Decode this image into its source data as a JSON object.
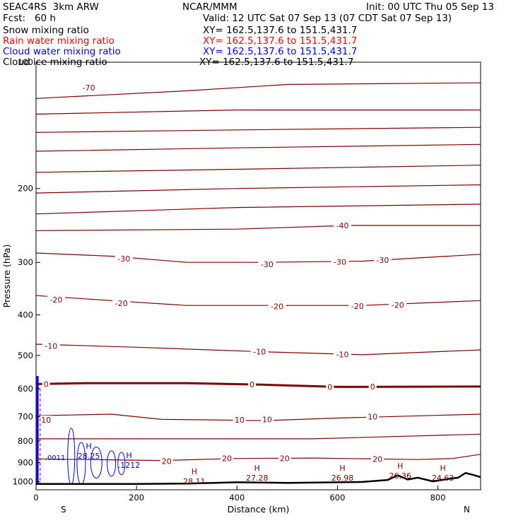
{
  "header": {
    "model": "SEAC4RS  3km ARW",
    "org": "NCAR/MMM",
    "init": "Init: 00 UTC Thu 05 Sep 13",
    "fcst": "Fcst:   60 h",
    "valid": "Valid: 12 UTC Sat 07 Sep 13 (07 CDT Sat 07 Sep 13)"
  },
  "fields": [
    {
      "label": "Snow mixing ratio",
      "xy": "XY= 162.5,137.6 to 151.5,431.7",
      "color": "#000000"
    },
    {
      "label": "Rain water mixing ratio",
      "xy": "XY= 162.5,137.6 to 151.5,431.7",
      "color": "#ff0000"
    },
    {
      "label": "Cloud water mixing ratio",
      "xy": "XY= 162.5,137.6 to 151.5,431.7",
      "color": "#0000ff"
    },
    {
      "label": "Cloud ice mixing ratio",
      "xy": "XY= 162.5,137.6 to 151.5,431.7",
      "color": "#000000"
    }
  ],
  "chart_data": {
    "type": "cross-section contour",
    "xlabel": "Distance (km)",
    "ylabel": "Pressure (hPa)",
    "xlim": [
      0,
      885
    ],
    "ylim": [
      1045,
      100
    ],
    "y_scale": "log",
    "xticks": [
      0,
      200,
      400,
      600,
      800
    ],
    "yticks": [
      100,
      200,
      300,
      400,
      500,
      600,
      700,
      800,
      900,
      1000
    ],
    "endpoints": [
      "S",
      "N"
    ],
    "isotherm_color": "#800000",
    "isotherms": [
      {
        "label": "-70",
        "p": [
          [
            0,
            122
          ],
          [
            300,
            117
          ],
          [
            500,
            113
          ],
          [
            885,
            112
          ]
        ],
        "labels": [
          [
            105,
            115
          ]
        ]
      },
      {
        "label": "",
        "p": [
          [
            0,
            133
          ],
          [
            400,
            130
          ],
          [
            885,
            130
          ]
        ]
      },
      {
        "label": "",
        "p": [
          [
            0,
            147
          ],
          [
            400,
            145
          ],
          [
            885,
            143
          ]
        ]
      },
      {
        "label": "",
        "p": [
          [
            0,
            163
          ],
          [
            400,
            160
          ],
          [
            885,
            157
          ]
        ]
      },
      {
        "label": "",
        "p": [
          [
            0,
            183
          ],
          [
            400,
            180
          ],
          [
            885,
            176
          ]
        ]
      },
      {
        "label": "",
        "p": [
          [
            0,
            205
          ],
          [
            400,
            200
          ],
          [
            885,
            196
          ]
        ]
      },
      {
        "label": "",
        "p": [
          [
            0,
            230
          ],
          [
            400,
            222
          ],
          [
            885,
            218
          ]
        ]
      },
      {
        "label": "-40",
        "p": [
          [
            0,
            252
          ],
          [
            400,
            250
          ],
          [
            620,
            245
          ],
          [
            885,
            245
          ]
        ],
        "labels": [
          [
            610,
            245
          ]
        ]
      },
      {
        "label": "-30",
        "p": [
          [
            0,
            285
          ],
          [
            150,
            290
          ],
          [
            300,
            300
          ],
          [
            450,
            300
          ],
          [
            650,
            298
          ],
          [
            885,
            287
          ]
        ],
        "labels": [
          [
            175,
            294
          ],
          [
            460,
            303
          ],
          [
            605,
            299
          ],
          [
            690,
            296
          ]
        ]
      },
      {
        "label": "-20",
        "p": [
          [
            0,
            360
          ],
          [
            150,
            370
          ],
          [
            300,
            380
          ],
          [
            450,
            380
          ],
          [
            650,
            380
          ],
          [
            885,
            370
          ]
        ],
        "labels": [
          [
            40,
            368
          ],
          [
            170,
            375
          ],
          [
            480,
            382
          ],
          [
            640,
            381
          ],
          [
            720,
            379
          ]
        ]
      },
      {
        "label": "-10",
        "p": [
          [
            0,
            470
          ],
          [
            200,
            478
          ],
          [
            450,
            490
          ],
          [
            650,
            498
          ],
          [
            885,
            485
          ]
        ],
        "labels": [
          [
            30,
            475
          ],
          [
            445,
            490
          ],
          [
            610,
            497
          ]
        ]
      },
      {
        "label": "0",
        "p": [
          [
            0,
            585
          ],
          [
            100,
            582
          ],
          [
            300,
            582
          ],
          [
            450,
            587
          ],
          [
            600,
            594
          ],
          [
            885,
            593
          ]
        ],
        "labels": [
          [
            20,
            585
          ],
          [
            430,
            586
          ],
          [
            585,
            594
          ],
          [
            670,
            593
          ]
        ]
      },
      {
        "label": "10",
        "p": [
          [
            0,
            696
          ],
          [
            150,
            690
          ],
          [
            250,
            710
          ],
          [
            350,
            712
          ],
          [
            450,
            715
          ],
          [
            600,
            705
          ],
          [
            885,
            690
          ]
        ],
        "labels": [
          [
            20,
            712
          ],
          [
            405,
            712
          ],
          [
            460,
            710
          ],
          [
            670,
            700
          ]
        ]
      },
      {
        "label": "",
        "p": [
          [
            0,
            790
          ],
          [
            300,
            790
          ],
          [
            550,
            790
          ],
          [
            885,
            770
          ]
        ]
      },
      {
        "label": "20",
        "p": [
          [
            0,
            882
          ],
          [
            250,
            890
          ],
          [
            400,
            880
          ],
          [
            550,
            878
          ],
          [
            760,
            885
          ],
          [
            830,
            880
          ],
          [
            885,
            860
          ]
        ],
        "labels": [
          [
            260,
            893
          ],
          [
            380,
            880
          ],
          [
            495,
            880
          ],
          [
            680,
            882
          ]
        ]
      }
    ],
    "highs": [
      {
        "x": 105,
        "p": 875,
        "label": "28.25",
        "color": "#0000ff"
      },
      {
        "x": 185,
        "p": 920,
        "label": ".1212",
        "color": "#0000ff"
      },
      {
        "x": 315,
        "p": 1005,
        "label": "28.11",
        "color": "#800000"
      },
      {
        "x": 440,
        "p": 985,
        "label": "27.28",
        "color": "#800000"
      },
      {
        "x": 610,
        "p": 985,
        "label": "26.98",
        "color": "#800000"
      },
      {
        "x": 725,
        "p": 975,
        "label": "26.36",
        "color": "#800000"
      },
      {
        "x": 810,
        "p": 985,
        "label": "24.63",
        "color": "#800000"
      }
    ],
    "cloud_water_label": ".0011",
    "terrain": [
      [
        0,
        1012
      ],
      [
        200,
        1012
      ],
      [
        300,
        1010
      ],
      [
        400,
        1003
      ],
      [
        500,
        1006
      ],
      [
        600,
        1003
      ],
      [
        650,
        1001
      ],
      [
        700,
        990
      ],
      [
        720,
        965
      ],
      [
        740,
        988
      ],
      [
        760,
        978
      ],
      [
        790,
        998
      ],
      [
        820,
        985
      ],
      [
        840,
        978
      ],
      [
        855,
        953
      ],
      [
        870,
        963
      ],
      [
        885,
        975
      ]
    ]
  }
}
